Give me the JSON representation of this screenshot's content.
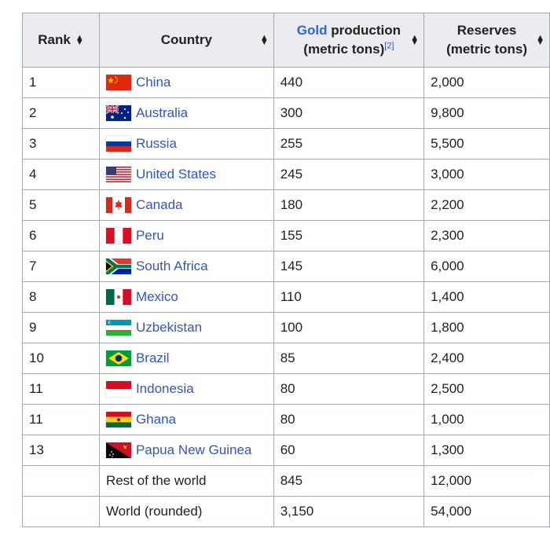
{
  "headers": {
    "rank": "Rank",
    "country": "Country",
    "production_link": "Gold",
    "production_rest": " production",
    "production_unit": "(metric tons)",
    "production_ref": "[2]",
    "reserves": "Reserves",
    "reserves_unit": "(metric tons)"
  },
  "rows": [
    {
      "rank": "1",
      "country": "China",
      "flag": "china-flag",
      "production": "440",
      "reserves": "2,000"
    },
    {
      "rank": "2",
      "country": "Australia",
      "flag": "australia-flag",
      "production": "300",
      "reserves": "9,800"
    },
    {
      "rank": "3",
      "country": "Russia",
      "flag": "russia-flag",
      "production": "255",
      "reserves": "5,500"
    },
    {
      "rank": "4",
      "country": "United States",
      "flag": "united-states-flag",
      "production": "245",
      "reserves": "3,000"
    },
    {
      "rank": "5",
      "country": "Canada",
      "flag": "canada-flag",
      "production": "180",
      "reserves": "2,200"
    },
    {
      "rank": "6",
      "country": "Peru",
      "flag": "peru-flag",
      "production": "155",
      "reserves": "2,300"
    },
    {
      "rank": "7",
      "country": "South Africa",
      "flag": "south-africa-flag",
      "production": "145",
      "reserves": "6,000"
    },
    {
      "rank": "8",
      "country": "Mexico",
      "flag": "mexico-flag",
      "production": "110",
      "reserves": "1,400"
    },
    {
      "rank": "9",
      "country": "Uzbekistan",
      "flag": "uzbekistan-flag",
      "production": "100",
      "reserves": "1,800"
    },
    {
      "rank": "10",
      "country": "Brazil",
      "flag": "brazil-flag",
      "production": "85",
      "reserves": "2,400"
    },
    {
      "rank": "11",
      "country": "Indonesia",
      "flag": "indonesia-flag",
      "production": "80",
      "reserves": "2,500"
    },
    {
      "rank": "11",
      "country": "Ghana",
      "flag": "ghana-flag",
      "production": "80",
      "reserves": "1,000"
    },
    {
      "rank": "13",
      "country": "Papua New Guinea",
      "flag": "papua-new-guinea-flag",
      "production": "60",
      "reserves": "1,300"
    }
  ],
  "totals": [
    {
      "label": "Rest of the world",
      "production": "845",
      "reserves": "12,000"
    },
    {
      "label": "World (rounded)",
      "production": "3,150",
      "reserves": "54,000"
    }
  ],
  "colors": {
    "link": "#3355bb",
    "header_bg": "#eaecf0",
    "border": "#a2a9b1"
  }
}
